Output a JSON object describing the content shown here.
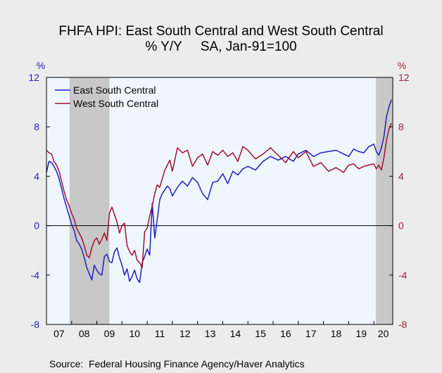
{
  "chart_data": {
    "type": "line",
    "title": "FHFA HPI: East South Central and West South Central",
    "subtitle": "% Y/Y     SA, Jan-91=100",
    "ylabel_left": "%",
    "ylabel_right": "%",
    "ylim": [
      -8,
      12
    ],
    "y_ticks": [
      "12",
      "8",
      "4",
      "0",
      "-4",
      "-8"
    ],
    "x_ticks": [
      "07",
      "08",
      "09",
      "10",
      "11",
      "12",
      "13",
      "14",
      "15",
      "16",
      "17",
      "18",
      "19",
      "20"
    ],
    "x_range": [
      2007.0,
      2020.75
    ],
    "recessions": [
      [
        2007.917,
        2009.5
      ],
      [
        2020.083,
        2020.75
      ]
    ],
    "legend_position": "top-left",
    "source": "Source:  Federal Housing Finance Agency/Haver Analytics",
    "series": [
      {
        "name": "East South Central",
        "color": "#1f1fc0",
        "x": [
          2007.0,
          2007.1,
          2007.2,
          2007.3,
          2007.4,
          2007.5,
          2007.6,
          2007.7,
          2007.8,
          2007.9,
          2008.0,
          2008.1,
          2008.2,
          2008.3,
          2008.4,
          2008.5,
          2008.6,
          2008.7,
          2008.8,
          2008.9,
          2009.0,
          2009.1,
          2009.2,
          2009.3,
          2009.4,
          2009.5,
          2009.6,
          2009.7,
          2009.8,
          2009.9,
          2010.0,
          2010.1,
          2010.2,
          2010.3,
          2010.4,
          2010.5,
          2010.6,
          2010.7,
          2010.8,
          2010.9,
          2011.0,
          2011.1,
          2011.2,
          2011.3,
          2011.4,
          2011.5,
          2011.6,
          2011.7,
          2011.8,
          2011.9,
          2012.0,
          2012.2,
          2012.4,
          2012.6,
          2012.8,
          2013.0,
          2013.2,
          2013.4,
          2013.6,
          2013.8,
          2014.0,
          2014.2,
          2014.4,
          2014.6,
          2014.8,
          2015.0,
          2015.3,
          2015.6,
          2015.9,
          2016.2,
          2016.5,
          2016.8,
          2017.0,
          2017.3,
          2017.6,
          2017.9,
          2018.2,
          2018.5,
          2018.8,
          2019.0,
          2019.2,
          2019.4,
          2019.6,
          2019.8,
          2020.0,
          2020.1,
          2020.2,
          2020.3,
          2020.4,
          2020.5,
          2020.6,
          2020.7
        ],
        "values": [
          4.3,
          5.2,
          5.1,
          4.8,
          4.4,
          3.8,
          3.0,
          2.2,
          1.5,
          0.8,
          0.1,
          -0.4,
          -1.2,
          -1.5,
          -1.9,
          -2.6,
          -3.4,
          -3.9,
          -4.4,
          -3.2,
          -3.6,
          -3.9,
          -4.0,
          -2.5,
          -2.3,
          -2.9,
          -3.0,
          -2.1,
          -1.8,
          -2.6,
          -3.2,
          -4.0,
          -3.5,
          -4.5,
          -4.1,
          -3.6,
          -4.3,
          -4.6,
          -3.0,
          -2.5,
          -1.9,
          -2.4,
          1.8,
          -1.0,
          0.5,
          2.1,
          2.6,
          2.9,
          3.2,
          3.0,
          2.4,
          3.1,
          3.6,
          3.2,
          3.9,
          3.5,
          2.6,
          2.1,
          3.5,
          3.6,
          4.2,
          3.4,
          4.4,
          4.1,
          4.6,
          4.8,
          4.5,
          5.2,
          5.6,
          5.3,
          5.6,
          5.2,
          5.8,
          6.1,
          5.6,
          5.9,
          6.0,
          6.1,
          5.8,
          5.6,
          6.2,
          6.0,
          5.9,
          6.4,
          6.6,
          6.0,
          5.7,
          6.3,
          7.2,
          8.8,
          9.6,
          10.2
        ]
      },
      {
        "name": "West South Central",
        "color": "#a01030",
        "x": [
          2007.0,
          2007.1,
          2007.2,
          2007.3,
          2007.4,
          2007.5,
          2007.6,
          2007.7,
          2007.8,
          2007.9,
          2008.0,
          2008.1,
          2008.2,
          2008.3,
          2008.4,
          2008.5,
          2008.6,
          2008.7,
          2008.8,
          2008.9,
          2009.0,
          2009.1,
          2009.2,
          2009.3,
          2009.4,
          2009.5,
          2009.6,
          2009.7,
          2009.8,
          2009.9,
          2010.0,
          2010.1,
          2010.2,
          2010.3,
          2010.4,
          2010.5,
          2010.6,
          2010.7,
          2010.8,
          2010.9,
          2011.0,
          2011.1,
          2011.2,
          2011.3,
          2011.4,
          2011.5,
          2011.6,
          2011.7,
          2011.8,
          2011.9,
          2012.0,
          2012.2,
          2012.4,
          2012.6,
          2012.8,
          2013.0,
          2013.2,
          2013.4,
          2013.6,
          2013.8,
          2014.0,
          2014.2,
          2014.4,
          2014.6,
          2014.8,
          2015.0,
          2015.3,
          2015.6,
          2015.9,
          2016.2,
          2016.5,
          2016.8,
          2017.0,
          2017.3,
          2017.6,
          2017.9,
          2018.2,
          2018.5,
          2018.8,
          2019.0,
          2019.2,
          2019.4,
          2019.6,
          2019.8,
          2020.0,
          2020.1,
          2020.2,
          2020.3,
          2020.4,
          2020.5,
          2020.6,
          2020.7
        ],
        "values": [
          6.1,
          5.9,
          5.8,
          5.2,
          4.9,
          4.4,
          3.6,
          2.8,
          2.1,
          1.6,
          1.0,
          0.5,
          -0.2,
          -0.6,
          -1.0,
          -1.6,
          -2.4,
          -2.6,
          -1.8,
          -1.2,
          -1.0,
          -1.5,
          -1.1,
          -0.6,
          -1.2,
          1.0,
          1.5,
          0.9,
          0.3,
          -0.6,
          0.0,
          0.2,
          -1.6,
          -2.1,
          -2.4,
          -2.0,
          -2.8,
          -3.0,
          -3.4,
          -0.5,
          -0.2,
          0.8,
          1.6,
          2.6,
          3.3,
          3.1,
          3.8,
          4.5,
          4.9,
          5.3,
          4.4,
          6.3,
          5.9,
          6.1,
          4.8,
          5.5,
          5.8,
          4.9,
          6.0,
          5.7,
          6.1,
          5.6,
          5.9,
          5.2,
          6.4,
          6.1,
          5.4,
          5.8,
          6.3,
          5.7,
          5.1,
          6.0,
          5.5,
          6.0,
          4.8,
          5.1,
          4.4,
          4.7,
          4.3,
          4.9,
          5.0,
          4.6,
          4.8,
          4.9,
          5.0,
          4.6,
          4.9,
          4.5,
          5.5,
          6.9,
          7.8,
          8.3
        ]
      }
    ]
  }
}
